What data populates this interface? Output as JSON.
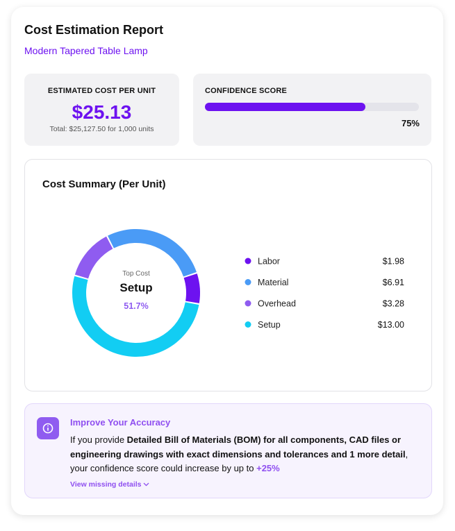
{
  "header": {
    "title": "Cost Estimation Report",
    "subtitle": "Modern Tapered Table Lamp"
  },
  "cost_card": {
    "label": "ESTIMATED COST PER UNIT",
    "value": "$25.13",
    "note": "Total: $25,127.50 for 1,000 units"
  },
  "confidence_card": {
    "label": "CONFIDENCE SCORE",
    "score": {
      "value": 75,
      "label": "75%"
    },
    "color": "#6d12f0",
    "track_color": "#e4e4ea"
  },
  "chart_data": {
    "type": "donut",
    "title": "Cost Summary (Per Unit)",
    "categories": [
      "Labor",
      "Material",
      "Overhead",
      "Setup"
    ],
    "values": [
      1.98,
      6.91,
      3.28,
      13.0
    ],
    "value_labels": [
      "$1.98",
      "$6.91",
      "$3.28",
      "$13.00"
    ],
    "colors": [
      "#6d12f0",
      "#4a9bf6",
      "#8f5cf0",
      "#12cdf3"
    ],
    "center": {
      "caption": "Top Cost",
      "name": "Setup",
      "share": "51.7%"
    }
  },
  "accuracy": {
    "title": "Improve Your Accuracy",
    "body": [
      {
        "text": "If you provide ",
        "strong": false
      },
      {
        "text": "Detailed Bill of Materials (BOM) for all components, CAD files or engineering drawings with exact dimensions and tolerances and 1 more detail",
        "strong": true
      },
      {
        "text": ", your confidence score could increase by up to ",
        "strong": false
      },
      {
        "text": "+25%",
        "strong": true,
        "accent": true
      }
    ],
    "link": "View missing details"
  }
}
